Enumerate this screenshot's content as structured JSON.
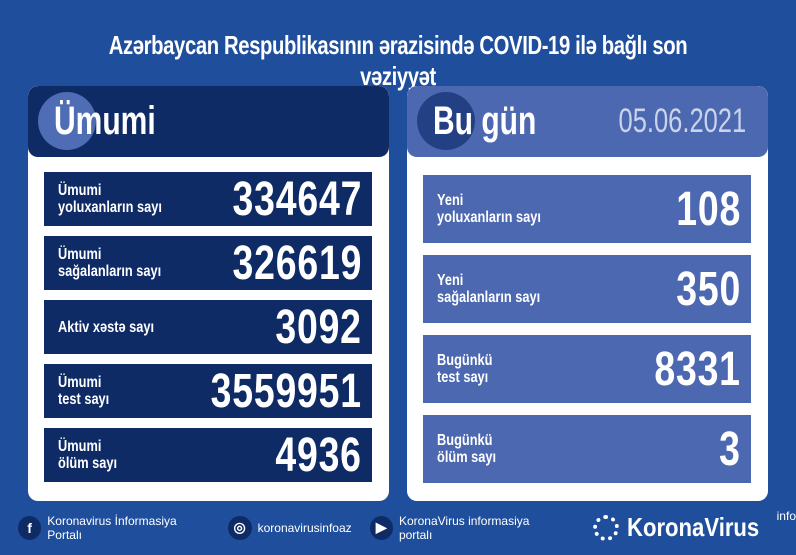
{
  "title": "Azərbaycan Respublikasının ərazisində COVID-19 ilə bağlı son vəziyyət",
  "total": {
    "heading": "Ümumi",
    "rows": [
      {
        "label": "Ümumi\nyoluxanların sayı",
        "value": "334647"
      },
      {
        "label": "Ümumi\nsağalanların sayı",
        "value": "326619"
      },
      {
        "label": "Aktiv xəstə sayı",
        "value": "3092"
      },
      {
        "label": "Ümumi\ntest sayı",
        "value": "3559951"
      },
      {
        "label": "Ümumi\nölüm sayı",
        "value": "4936"
      }
    ]
  },
  "today": {
    "heading": "Bu gün",
    "date": "05.06.2021",
    "rows": [
      {
        "label": "Yeni\nyoluxanların sayı",
        "value": "108"
      },
      {
        "label": "Yeni\nsağalanların sayı",
        "value": "350"
      },
      {
        "label": "Bugünkü\ntest sayı",
        "value": "8331"
      },
      {
        "label": "Bugünkü\nölüm sayı",
        "value": "3"
      }
    ]
  },
  "footer": {
    "facebook": "Koronavirus İnformasiya Portalı",
    "instagram": "koronavirusinfoaz",
    "youtube": "KoronaVirus informasiya portalı",
    "logo": "KoronaVirus",
    "logo_sup": "info"
  },
  "colors": {
    "background": "#1f4f9c",
    "dark": "#0e2b66",
    "light": "#4c68b1"
  }
}
